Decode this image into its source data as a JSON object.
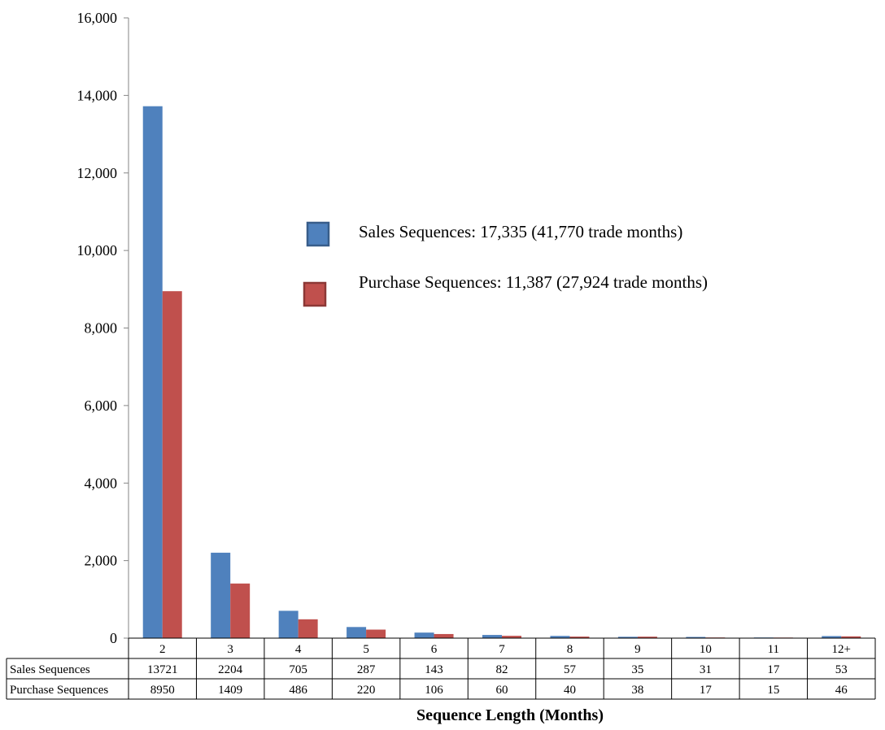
{
  "chart_data": {
    "type": "bar",
    "categories": [
      "2",
      "3",
      "4",
      "5",
      "6",
      "7",
      "8",
      "9",
      "10",
      "11",
      "12+"
    ],
    "series": [
      {
        "name": "Sales Sequences",
        "legend_label": "Sales Sequences: 17,335 (41,770 trade months)",
        "color": "#4F81BD",
        "values": [
          13721,
          2204,
          705,
          287,
          143,
          82,
          57,
          35,
          31,
          17,
          53
        ]
      },
      {
        "name": "Purchase Sequences",
        "legend_label": "Purchase Sequences: 11,387 (27,924 trade months)",
        "color": "#C0504D",
        "values": [
          8950,
          1409,
          486,
          220,
          106,
          60,
          40,
          38,
          17,
          15,
          46
        ]
      }
    ],
    "yticks": [
      "0",
      "2,000",
      "4,000",
      "6,000",
      "8,000",
      "10,000",
      "12,000",
      "14,000",
      "16,000"
    ],
    "ylim": [
      0,
      16000
    ],
    "xlabel": "Sequence Length (Months)",
    "ylabel": "",
    "title": "",
    "grid": false,
    "legend_position": "center-right",
    "data_table": true
  }
}
